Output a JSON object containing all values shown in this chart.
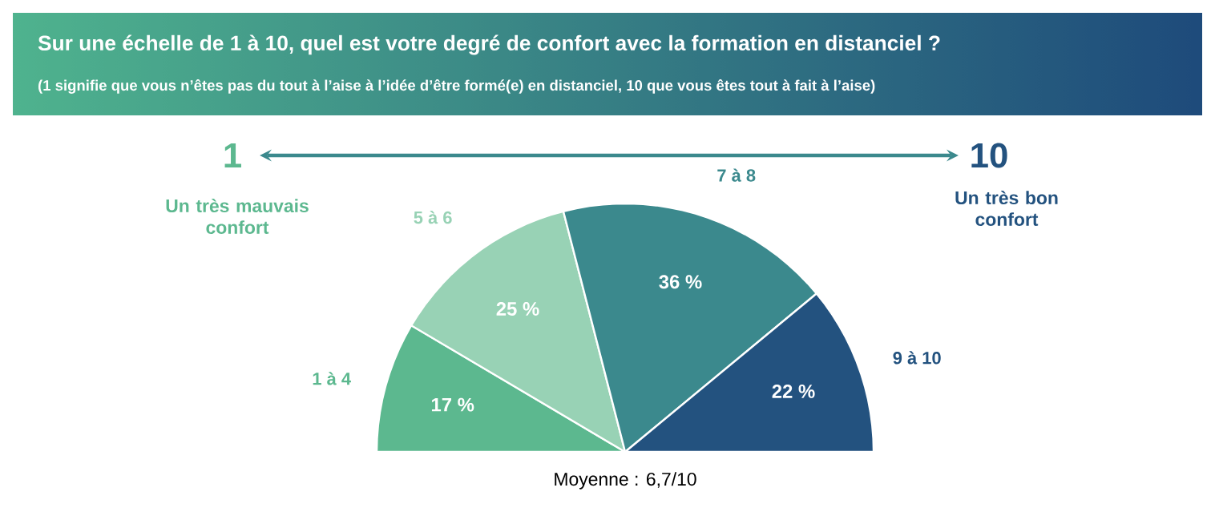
{
  "chart_data": {
    "type": "pie",
    "title": "Sur une échelle de 1 à 10, quel est votre degré de confort avec la formation en distanciel ?",
    "subtitle": "(1 signifie que vous n’êtes pas du tout à l’aise à l’idée d’être formé(e) en distanciel, 10 que vous êtes tout à fait à l’aise)",
    "categories": [
      "1 à 4",
      "5 à 6",
      "7 à 8",
      "9 à 10"
    ],
    "values": [
      17,
      25,
      36,
      22
    ],
    "colors": [
      "#5cb88f",
      "#98d2b5",
      "#3b898d",
      "#23527f"
    ],
    "value_labels": [
      "17 %",
      "25 %",
      "36 %",
      "22 %"
    ],
    "annotations": [
      "1",
      "10",
      "Un très mauvais confort",
      "Un très bon confort",
      "Moyenne : 6,7/10"
    ]
  }
}
